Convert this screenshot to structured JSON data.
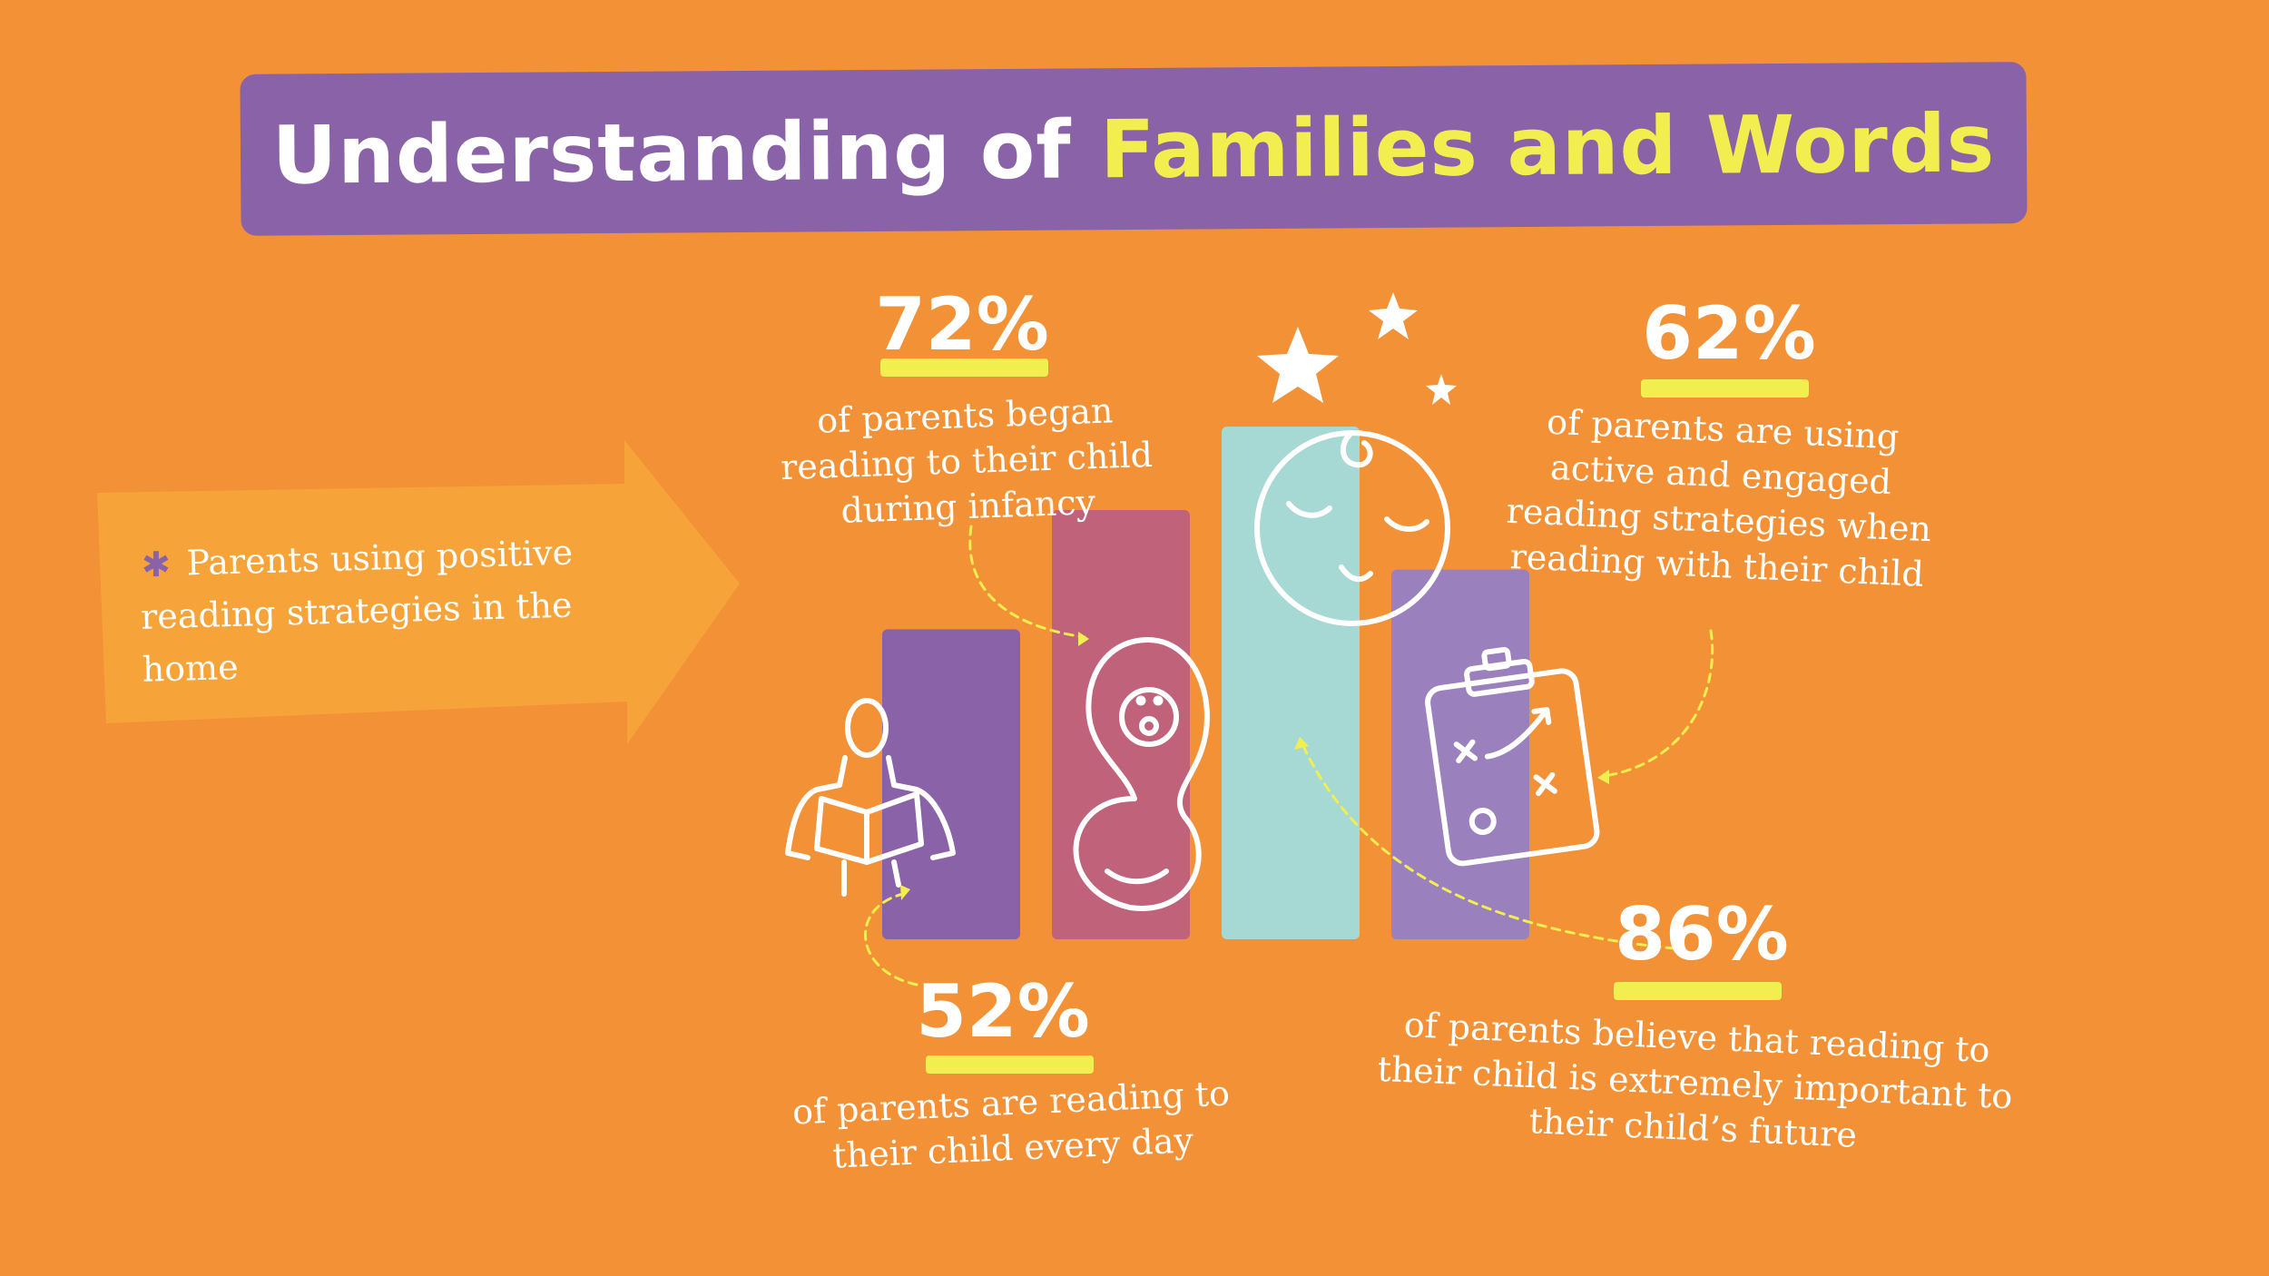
{
  "title": {
    "part1": "Understanding of ",
    "part2": "Families and Words"
  },
  "callout": {
    "text": "Parents using positive reading strategies in the home"
  },
  "stats": [
    {
      "value": "52%",
      "text": "of parents are reading to their child every day"
    },
    {
      "value": "72%",
      "text": "of parents began reading to their child during infancy"
    },
    {
      "value": "86%",
      "text": "of parents believe that reading to their child is extremely important to their child’s future"
    },
    {
      "value": "62%",
      "text": "of parents are using active and engaged reading strategies when reading with their child"
    }
  ],
  "chart_data": {
    "type": "bar",
    "values": [
      52,
      72,
      86,
      62
    ],
    "colors": [
      "#8a62a8",
      "#c0627a",
      "#a6d9d4",
      "#9a80bd"
    ],
    "icons": [
      "parent-reading-icon",
      "swaddled-baby-icon",
      "sleeping-child-icon",
      "clipboard-strategy-icon"
    ],
    "ylim": [
      0,
      100
    ]
  },
  "colors": {
    "background": "#f39137",
    "banner": "#8a62a8",
    "accent": "#f2ee4f",
    "arrow": "#f6a339"
  }
}
